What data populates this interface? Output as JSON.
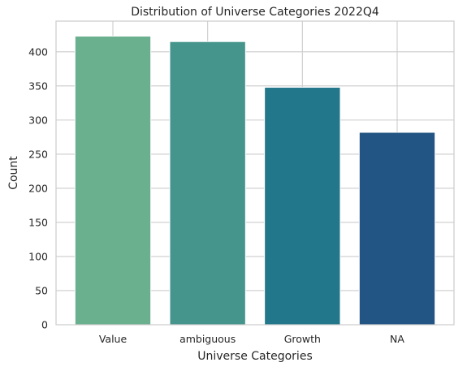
{
  "chart_data": {
    "type": "bar",
    "title": "Distribution of Universe Categories 2022Q4",
    "xlabel": "Universe Categories",
    "ylabel": "Count",
    "categories": [
      "Value",
      "ambiguous",
      "Growth",
      "NA"
    ],
    "values": [
      423,
      415,
      348,
      282
    ],
    "colors": [
      "#6ab08f",
      "#45958c",
      "#23778b",
      "#225583"
    ],
    "ylim": [
      0,
      445
    ],
    "yticks": [
      0,
      50,
      100,
      150,
      200,
      250,
      300,
      350,
      400
    ],
    "grid": true
  }
}
